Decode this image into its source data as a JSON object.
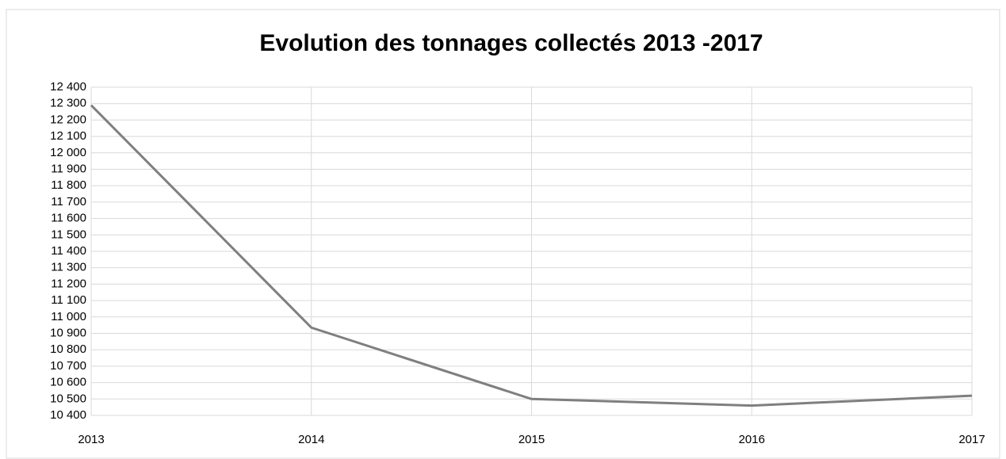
{
  "chart_data": {
    "type": "line",
    "title": "Evolution des tonnages collectés 2013 -2017",
    "categories": [
      "2013",
      "2014",
      "2015",
      "2016",
      "2017"
    ],
    "values": [
      12290,
      10935,
      10500,
      10460,
      10520
    ],
    "color": "#7f7f7f",
    "ylim": [
      10400,
      12400
    ],
    "yticks": [
      {
        "value": 10400,
        "label": "10 400"
      },
      {
        "value": 10500,
        "label": "10 500"
      },
      {
        "value": 10600,
        "label": "10 600"
      },
      {
        "value": 10700,
        "label": "10 700"
      },
      {
        "value": 10800,
        "label": "10 800"
      },
      {
        "value": 10900,
        "label": "10 900"
      },
      {
        "value": 11000,
        "label": "11 000"
      },
      {
        "value": 11100,
        "label": "11 100"
      },
      {
        "value": 11200,
        "label": "11 200"
      },
      {
        "value": 11300,
        "label": "11 300"
      },
      {
        "value": 11400,
        "label": "11 400"
      },
      {
        "value": 11500,
        "label": "11 500"
      },
      {
        "value": 11600,
        "label": "11 600"
      },
      {
        "value": 11700,
        "label": "11 700"
      },
      {
        "value": 11800,
        "label": "11 800"
      },
      {
        "value": 11900,
        "label": "11 900"
      },
      {
        "value": 12000,
        "label": "12 000"
      },
      {
        "value": 12100,
        "label": "12 100"
      },
      {
        "value": 12200,
        "label": "12 200"
      },
      {
        "value": 12300,
        "label": "12 300"
      },
      {
        "value": 12400,
        "label": "12 400"
      }
    ],
    "grid": true
  }
}
